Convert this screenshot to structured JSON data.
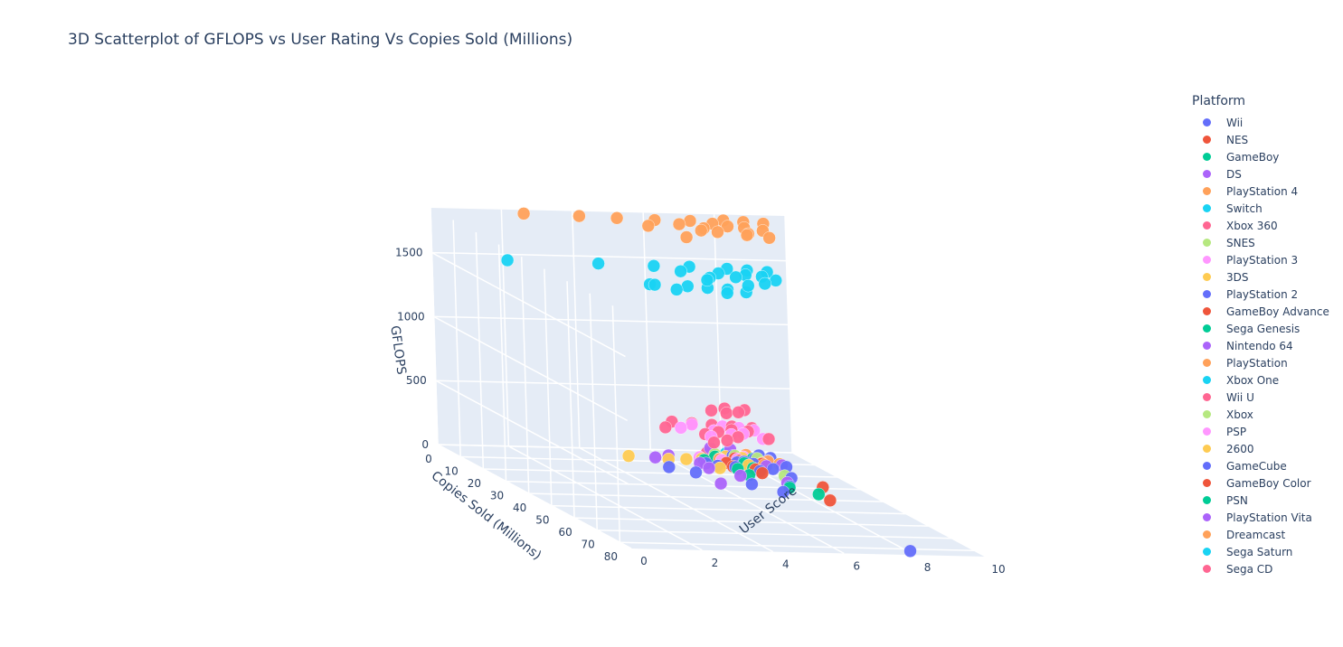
{
  "chart_data": {
    "type": "scatter",
    "title": "3D Scatterplot of GFLOPS vs User Rating Vs Copies Sold (Millions)",
    "axes": {
      "x": {
        "label": "User Score",
        "range": [
          0,
          10
        ],
        "ticks": [
          0,
          2,
          4,
          6,
          8,
          10
        ]
      },
      "y": {
        "label": "Copies Sold (Millions)",
        "range": [
          0,
          85
        ],
        "ticks": [
          0,
          10,
          20,
          30,
          40,
          50,
          60,
          70,
          80
        ]
      },
      "z": {
        "label": "GFLOPS",
        "range": [
          0,
          1850
        ],
        "ticks": [
          0,
          500,
          1000,
          1500
        ]
      }
    },
    "grid": true,
    "legend": {
      "title": "Platform",
      "placement": "right"
    },
    "series": [
      {
        "name": "Wii",
        "color": "#636efa",
        "gflops": 12,
        "points": [
          [
            8,
            83
          ],
          [
            7.5,
            35
          ],
          [
            8,
            30
          ],
          [
            7,
            29
          ],
          [
            8.5,
            23
          ],
          [
            6,
            20
          ],
          [
            5.5,
            16
          ],
          [
            7,
            14
          ],
          [
            6.8,
            12
          ],
          [
            8,
            10
          ]
        ]
      },
      {
        "name": "NES",
        "color": "#EF553B",
        "gflops": 0.01,
        "points": [
          [
            8.5,
            40
          ],
          [
            9.0,
            29
          ],
          [
            8.0,
            18
          ],
          [
            7.5,
            10
          ],
          [
            8.0,
            8
          ]
        ]
      },
      {
        "name": "GameBoy",
        "color": "#00cc96",
        "gflops": 0.01,
        "points": [
          [
            8.5,
            35
          ],
          [
            8.0,
            30
          ],
          [
            7.5,
            20
          ],
          [
            8.0,
            14
          ],
          [
            7.0,
            8
          ]
        ]
      },
      {
        "name": "DS",
        "color": "#ab63fa",
        "gflops": 30,
        "points": [
          [
            6.0,
            31
          ],
          [
            8.0,
            29
          ],
          [
            7.0,
            24
          ],
          [
            6.5,
            18
          ],
          [
            6.5,
            14
          ],
          [
            5.5,
            10
          ],
          [
            6.0,
            8
          ]
        ]
      },
      {
        "name": "PlayStation 4",
        "color": "#FFA15A",
        "gflops": 1840,
        "points": [
          [
            2.5,
            2
          ],
          [
            4.0,
            3
          ],
          [
            5.0,
            4
          ],
          [
            6.0,
            5
          ],
          [
            7.0,
            5
          ],
          [
            8.0,
            4
          ],
          [
            8.5,
            5
          ],
          [
            9.0,
            6
          ],
          [
            7.5,
            7
          ],
          [
            6.5,
            8
          ],
          [
            7.8,
            9
          ],
          [
            8.2,
            10
          ],
          [
            5.5,
            10
          ],
          [
            7.0,
            11
          ],
          [
            8.6,
            12
          ],
          [
            6.8,
            13
          ],
          [
            7.2,
            14
          ],
          [
            8.0,
            15
          ],
          [
            7.9,
            16
          ],
          [
            8.4,
            18
          ],
          [
            6.0,
            19
          ]
        ]
      },
      {
        "name": "Switch",
        "color": "#19d3f3",
        "gflops": 1472,
        "points": [
          [
            2.0,
            2
          ],
          [
            4.5,
            3
          ],
          [
            6.0,
            4
          ],
          [
            7.0,
            4
          ],
          [
            8.0,
            5
          ],
          [
            8.5,
            6
          ],
          [
            9.0,
            7
          ],
          [
            6.5,
            8
          ],
          [
            7.5,
            9
          ],
          [
            8.2,
            10
          ],
          [
            8.6,
            11
          ],
          [
            7.8,
            12
          ],
          [
            7.0,
            13
          ],
          [
            8.8,
            14
          ],
          [
            6.8,
            15
          ],
          [
            8.3,
            17
          ],
          [
            7.7,
            19
          ],
          [
            5.0,
            20
          ]
        ]
      },
      {
        "name": "Xbox 360",
        "color": "#FF6692",
        "gflops": 240,
        "points": [
          [
            6.5,
            2
          ],
          [
            7.0,
            3
          ],
          [
            7.5,
            4
          ],
          [
            8.0,
            5
          ],
          [
            8.5,
            6
          ],
          [
            6.0,
            7
          ],
          [
            7.8,
            8
          ],
          [
            8.2,
            9
          ],
          [
            7.3,
            10
          ],
          [
            6.8,
            12
          ],
          [
            7.6,
            14
          ],
          [
            8.4,
            15
          ],
          [
            7.1,
            17
          ],
          [
            6.6,
            19
          ]
        ]
      },
      {
        "name": "SNES",
        "color": "#B6E880",
        "gflops": 0.1,
        "points": [
          [
            8.5,
            20
          ],
          [
            8.0,
            15
          ],
          [
            9.0,
            10
          ],
          [
            7.5,
            8
          ]
        ]
      },
      {
        "name": "PlayStation 3",
        "color": "#FF97FF",
        "gflops": 230,
        "points": [
          [
            7.0,
            3
          ],
          [
            7.8,
            4
          ],
          [
            8.2,
            5
          ],
          [
            6.5,
            6
          ],
          [
            8.5,
            7
          ],
          [
            7.3,
            8
          ],
          [
            8.0,
            10
          ],
          [
            7.6,
            11
          ],
          [
            6.9,
            13
          ],
          [
            8.3,
            14
          ]
        ]
      },
      {
        "name": "3DS",
        "color": "#FECB52",
        "gflops": 4,
        "points": [
          [
            7.0,
            15
          ],
          [
            8.0,
            12
          ],
          [
            8.5,
            10
          ],
          [
            6.5,
            8
          ],
          [
            7.5,
            7
          ],
          [
            8.2,
            6
          ],
          [
            7.8,
            5
          ]
        ]
      },
      {
        "name": "PlayStation 2",
        "color": "#636efa",
        "gflops": 6,
        "points": [
          [
            8.0,
            17
          ],
          [
            8.5,
            15
          ],
          [
            7.5,
            14
          ],
          [
            9.0,
            13
          ],
          [
            8.2,
            11
          ],
          [
            7.8,
            10
          ],
          [
            8.8,
            8
          ]
        ]
      },
      {
        "name": "GameBoy Advance",
        "color": "#EF553B",
        "gflops": 0.02,
        "points": [
          [
            8.0,
            15
          ],
          [
            7.5,
            13
          ],
          [
            8.5,
            10
          ],
          [
            7.0,
            8
          ]
        ]
      },
      {
        "name": "Sega Genesis",
        "color": "#00cc96",
        "gflops": 0.01,
        "points": [
          [
            7.5,
            15
          ],
          [
            8.0,
            10
          ],
          [
            7.0,
            8
          ],
          [
            8.5,
            6
          ]
        ]
      },
      {
        "name": "Nintendo 64",
        "color": "#ab63fa",
        "gflops": 0.2,
        "points": [
          [
            8.5,
            12
          ],
          [
            9.0,
            11
          ],
          [
            8.0,
            9
          ],
          [
            8.8,
            8
          ],
          [
            7.5,
            7
          ]
        ]
      },
      {
        "name": "PlayStation",
        "color": "#FFA15A",
        "gflops": 0.07,
        "points": [
          [
            8.5,
            11
          ],
          [
            9.0,
            10
          ],
          [
            8.0,
            9
          ],
          [
            8.8,
            8
          ],
          [
            7.5,
            7
          ]
        ]
      },
      {
        "name": "Xbox One",
        "color": "#19d3f3",
        "gflops": 1310,
        "points": [
          [
            6.0,
            2
          ],
          [
            7.0,
            3
          ],
          [
            7.5,
            4
          ],
          [
            8.0,
            5
          ],
          [
            6.5,
            6
          ],
          [
            8.4,
            7
          ],
          [
            7.8,
            8
          ]
        ]
      },
      {
        "name": "Wii U",
        "color": "#FF6692",
        "gflops": 352,
        "points": [
          [
            8.0,
            2
          ],
          [
            8.5,
            3
          ],
          [
            7.5,
            4
          ],
          [
            8.2,
            5
          ],
          [
            7.8,
            6
          ]
        ]
      },
      {
        "name": "Xbox",
        "color": "#B6E880",
        "gflops": 20,
        "points": [
          [
            8.5,
            8
          ],
          [
            8.0,
            6
          ],
          [
            7.5,
            5
          ]
        ]
      },
      {
        "name": "PSP",
        "color": "#FF97FF",
        "gflops": 2.6,
        "points": [
          [
            7.5,
            8
          ],
          [
            8.0,
            7
          ],
          [
            7.0,
            6
          ],
          [
            8.3,
            5
          ]
        ]
      },
      {
        "name": "2600",
        "color": "#FECB52",
        "gflops": 0.001,
        "points": [
          [
            6.0,
            8
          ],
          [
            7.0,
            7
          ],
          [
            5.0,
            6
          ]
        ]
      },
      {
        "name": "GameCube",
        "color": "#636efa",
        "gflops": 9.4,
        "points": [
          [
            8.5,
            7
          ],
          [
            9.0,
            6
          ],
          [
            8.0,
            5
          ],
          [
            8.8,
            4
          ]
        ]
      },
      {
        "name": "GameBoy Color",
        "color": "#EF553B",
        "gflops": 0.01,
        "points": [
          [
            8.0,
            6
          ],
          [
            7.5,
            5
          ]
        ]
      },
      {
        "name": "PSN",
        "color": "#00cc96",
        "gflops": 0.5,
        "points": [
          [
            7.5,
            5
          ],
          [
            8.0,
            4
          ]
        ]
      },
      {
        "name": "PlayStation Vita",
        "color": "#ab63fa",
        "gflops": 50,
        "points": [
          [
            8.0,
            4
          ],
          [
            7.5,
            3
          ]
        ]
      },
      {
        "name": "Dreamcast",
        "color": "#FFA15A",
        "gflops": 1.4,
        "points": [
          [
            8.5,
            3
          ],
          [
            8.0,
            2
          ]
        ]
      },
      {
        "name": "Sega Saturn",
        "color": "#19d3f3",
        "gflops": 0.5,
        "points": [
          [
            8.0,
            2
          ],
          [
            7.5,
            1.5
          ]
        ]
      },
      {
        "name": "Sega CD",
        "color": "#FF6692",
        "gflops": 0.1,
        "points": [
          [
            7.5,
            1.5
          ]
        ]
      }
    ]
  }
}
